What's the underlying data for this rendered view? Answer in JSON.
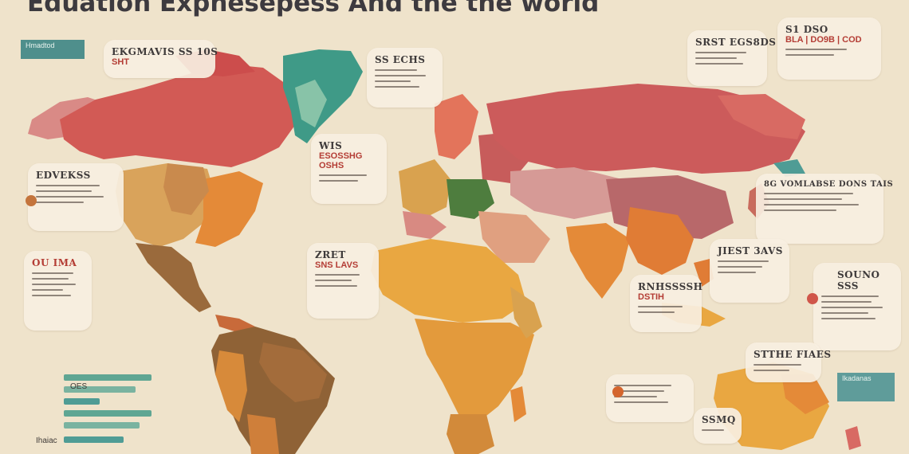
{
  "title": "Eduation Expnesepess And the tne world",
  "colors": {
    "background": "#efe3cb",
    "red": "#d45a55",
    "teal": "#3f9a87",
    "orange": "#e59a3a",
    "brown": "#9a6a3c",
    "pink": "#d98e8e",
    "green": "#4e7d3e"
  },
  "cards": [
    {
      "id": "card-north-america-top",
      "title": "EKGMAVIS SS 10S",
      "sub": "SHT"
    },
    {
      "id": "card-greenland",
      "title": "SS ECHS",
      "sub": ""
    },
    {
      "id": "card-north-atlantic",
      "title": "WIS",
      "sub": "ESOSSHG OSHS"
    },
    {
      "id": "card-canada-west",
      "title": "EDVEKSS",
      "sub": ""
    },
    {
      "id": "card-pacific-west",
      "title": "OU IMA",
      "sub": ""
    },
    {
      "id": "card-west-africa",
      "title": "ZRET",
      "sub": "SNS LAVS"
    },
    {
      "id": "card-russia-north",
      "title": "SRST EGS8DS",
      "sub": ""
    },
    {
      "id": "card-top-right",
      "title": "S1 DSO",
      "sub": "BLA | DO9B | COD"
    },
    {
      "id": "card-east-asia",
      "title": "8G VOMLABSE DONS TAIS",
      "sub": ""
    },
    {
      "id": "card-india",
      "title": "JIEST 3AVS",
      "sub": ""
    },
    {
      "id": "card-indian-ocean",
      "title": "RNHSSSSH",
      "sub": "DSTIH"
    },
    {
      "id": "card-pacific-east",
      "title": "SOUNO SSS",
      "sub": ""
    },
    {
      "id": "card-australia",
      "title": "STTHE FIAES",
      "sub": ""
    },
    {
      "id": "card-south-africa",
      "title": "",
      "sub": ""
    },
    {
      "id": "card-bottom-mid",
      "title": "SSMQ",
      "sub": ""
    }
  ],
  "left_legend": {
    "tag": "Hmadtod",
    "labels": [
      "OES",
      "Ihaiac"
    ]
  },
  "right_tag": "Ikadanas"
}
